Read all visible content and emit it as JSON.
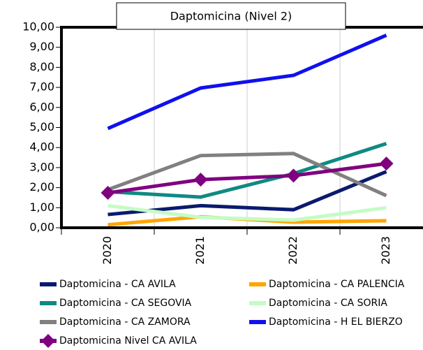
{
  "chart_data": {
    "type": "line",
    "title": "Daptomicina (Nivel 2)",
    "categories": [
      "2020",
      "2021",
      "2022",
      "2023"
    ],
    "series": [
      {
        "name": "Daptomicina - CA AVILA",
        "color": "#0a1a6e",
        "values": [
          0.66,
          1.1,
          0.9,
          2.8
        ]
      },
      {
        "name": "Daptomicina - CA PALENCIA",
        "color": "#ffa500",
        "values": [
          0.15,
          0.55,
          0.28,
          0.35
        ]
      },
      {
        "name": "Daptomicina - CA SEGOVIA",
        "color": "#0f8a82",
        "values": [
          1.8,
          1.53,
          2.7,
          4.2
        ]
      },
      {
        "name": "Daptomicina - CA SORIA",
        "color": "#c4fcc4",
        "values": [
          1.1,
          0.52,
          0.38,
          1.0
        ]
      },
      {
        "name": "Daptomicina - CA ZAMORA",
        "color": "#808080",
        "values": [
          1.9,
          3.6,
          3.7,
          1.6
        ]
      },
      {
        "name": "Daptomicina - H EL BIERZO",
        "color": "#1010ee",
        "values": [
          4.95,
          6.97,
          7.6,
          9.6
        ]
      },
      {
        "name": "Daptomicina Nivel CA AVILA",
        "color": "#800080",
        "values": [
          1.74,
          2.4,
          2.6,
          3.2
        ],
        "marker": "diamond"
      }
    ],
    "ylim": [
      0,
      10
    ],
    "yticks": [
      {
        "value": 0,
        "label": "0,00"
      },
      {
        "value": 1,
        "label": "1,00"
      },
      {
        "value": 2,
        "label": "2,00"
      },
      {
        "value": 3,
        "label": "3,00"
      },
      {
        "value": 4,
        "label": "4,00"
      },
      {
        "value": 5,
        "label": "5,00"
      },
      {
        "value": 6,
        "label": "6,00"
      },
      {
        "value": 7,
        "label": "7,00"
      },
      {
        "value": 8,
        "label": "8,00"
      },
      {
        "value": 9,
        "label": "9,00"
      },
      {
        "value": 10,
        "label": "10,00"
      }
    ]
  }
}
